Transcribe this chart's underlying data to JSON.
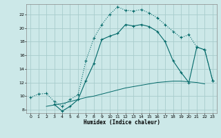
{
  "xlabel": "Humidex (Indice chaleur)",
  "bg_color": "#cce8e8",
  "grid_color": "#a8cccc",
  "line_color": "#006868",
  "xlim": [
    -0.5,
    23.5
  ],
  "ylim": [
    7.5,
    23.5
  ],
  "xticks": [
    0,
    1,
    2,
    3,
    4,
    5,
    6,
    7,
    8,
    9,
    10,
    11,
    12,
    13,
    14,
    15,
    16,
    17,
    18,
    19,
    20,
    21,
    22,
    23
  ],
  "yticks": [
    8,
    10,
    12,
    14,
    16,
    18,
    20,
    22
  ],
  "curve1_x": [
    0,
    1,
    2,
    3,
    4,
    5,
    6,
    7,
    8,
    9,
    10,
    11,
    12,
    13,
    14,
    15,
    16,
    17,
    18,
    19,
    20,
    21,
    22,
    23
  ],
  "curve1_y": [
    9.8,
    10.3,
    10.4,
    9.2,
    8.5,
    9.5,
    10.2,
    15.2,
    18.5,
    20.5,
    22.0,
    23.1,
    22.6,
    22.5,
    22.7,
    22.2,
    21.5,
    20.5,
    19.5,
    18.6,
    19.0,
    17.2,
    16.8,
    12.3
  ],
  "curve2_x": [
    3,
    4,
    5,
    6,
    7,
    8,
    9,
    10,
    11,
    12,
    13,
    14,
    15,
    16,
    17,
    18,
    19,
    20,
    21,
    22,
    23
  ],
  "curve2_y": [
    8.8,
    7.8,
    8.5,
    9.5,
    12.3,
    14.8,
    18.3,
    18.8,
    19.2,
    20.5,
    20.3,
    20.5,
    20.2,
    19.5,
    18.0,
    15.2,
    13.5,
    12.0,
    17.2,
    16.8,
    12.3
  ],
  "curve3_x": [
    2,
    3,
    4,
    5,
    6,
    7,
    8,
    9,
    10,
    11,
    12,
    13,
    14,
    15,
    16,
    17,
    18,
    19,
    20,
    21,
    22
  ],
  "curve3_y": [
    8.5,
    8.7,
    8.9,
    9.2,
    9.5,
    9.8,
    10.0,
    10.3,
    10.6,
    10.9,
    11.2,
    11.4,
    11.6,
    11.8,
    12.0,
    12.1,
    12.2,
    12.2,
    12.1,
    12.0,
    11.8
  ]
}
